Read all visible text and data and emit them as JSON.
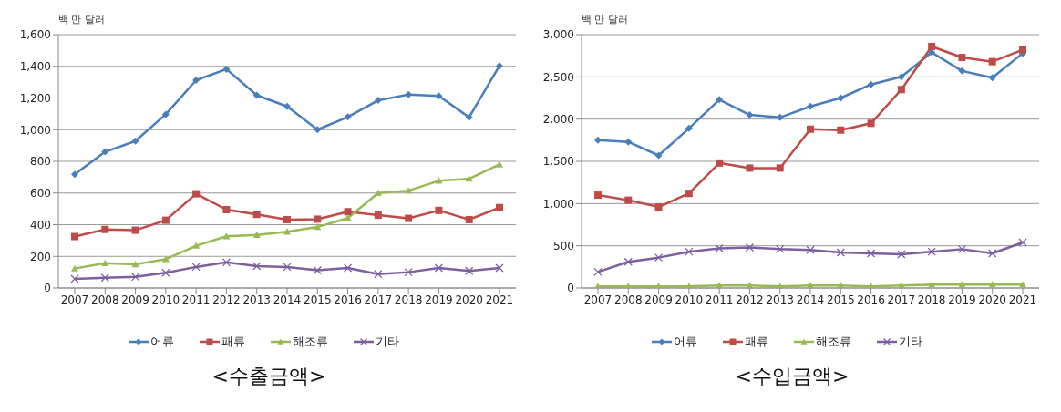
{
  "chart_data": [
    {
      "type": "line",
      "title": "<수출금액>",
      "ylabel": "백 만 달러",
      "categories": [
        "2007",
        "2008",
        "2009",
        "2010",
        "2011",
        "2012",
        "2013",
        "2014",
        "2015",
        "2016",
        "2017",
        "2018",
        "2019",
        "2020",
        "2021"
      ],
      "series": [
        {
          "name": "어류",
          "color": "#4a7ebb",
          "marker": "diamond",
          "values": [
            718,
            860,
            928,
            1097,
            1312,
            1382,
            1217,
            1147,
            1000,
            1080,
            1185,
            1222,
            1213,
            1078,
            1403
          ]
        },
        {
          "name": "패류",
          "color": "#be4b48",
          "marker": "square",
          "values": [
            325,
            370,
            365,
            428,
            595,
            495,
            465,
            432,
            435,
            482,
            460,
            440,
            490,
            432,
            508
          ]
        },
        {
          "name": "해조류",
          "color": "#98b954",
          "marker": "triangle",
          "values": [
            123,
            157,
            150,
            182,
            267,
            327,
            335,
            355,
            385,
            442,
            600,
            615,
            677,
            690,
            780
          ]
        },
        {
          "name": "기타",
          "color": "#7d5fa0",
          "marker": "cross",
          "values": [
            58,
            65,
            70,
            96,
            133,
            162,
            138,
            133,
            112,
            127,
            88,
            100,
            127,
            108,
            127
          ]
        }
      ],
      "ylim": [
        0,
        1600
      ],
      "yticks": [
        0,
        {
          "value": 200,
          "label": "200"
        },
        {
          "value": 400,
          "label": "400"
        },
        {
          "value": 600,
          "label": "600"
        },
        {
          "value": 800,
          "label": "800"
        },
        {
          "value": 1000,
          "label": "1,000"
        },
        {
          "value": 1200,
          "label": "1,200"
        },
        {
          "value": 1400,
          "label": "1,400"
        },
        {
          "value": 1600,
          "label": "1,600"
        }
      ],
      "grid": "y",
      "legend": "bottom"
    },
    {
      "type": "line",
      "title": "<수입금액>",
      "ylabel": "백 만 달러",
      "categories": [
        "2007",
        "2008",
        "2009",
        "2010",
        "2011",
        "2012",
        "2013",
        "2014",
        "2015",
        "2016",
        "2017",
        "2018",
        "2019",
        "2020",
        "2021"
      ],
      "series": [
        {
          "name": "어류",
          "color": "#4a7ebb",
          "marker": "diamond",
          "values": [
            1750,
            1730,
            1570,
            1890,
            2230,
            2050,
            2020,
            2150,
            2250,
            2410,
            2500,
            2790,
            2570,
            2490,
            2780
          ]
        },
        {
          "name": "패류",
          "color": "#be4b48",
          "marker": "square",
          "values": [
            1100,
            1040,
            960,
            1120,
            1480,
            1420,
            1420,
            1880,
            1870,
            1950,
            2350,
            2860,
            2730,
            2680,
            2820
          ]
        },
        {
          "name": "해조류",
          "color": "#98b954",
          "marker": "triangle",
          "values": [
            20,
            20,
            20,
            20,
            30,
            30,
            20,
            30,
            30,
            20,
            30,
            40,
            40,
            40,
            40
          ]
        },
        {
          "name": "기타",
          "color": "#7d5fa0",
          "marker": "cross",
          "values": [
            190,
            310,
            360,
            430,
            470,
            480,
            460,
            450,
            420,
            410,
            400,
            430,
            460,
            410,
            540
          ]
        }
      ],
      "ylim": [
        0,
        3000
      ],
      "yticks": [
        0,
        {
          "value": 500,
          "label": "500"
        },
        {
          "value": 1000,
          "label": "1,000"
        },
        {
          "value": 1500,
          "label": "1,500"
        },
        {
          "value": 2000,
          "label": "2,000"
        },
        {
          "value": 2500,
          "label": "2,500"
        },
        {
          "value": 3000,
          "label": "3,000"
        }
      ],
      "grid": "y",
      "legend": "bottom"
    }
  ]
}
